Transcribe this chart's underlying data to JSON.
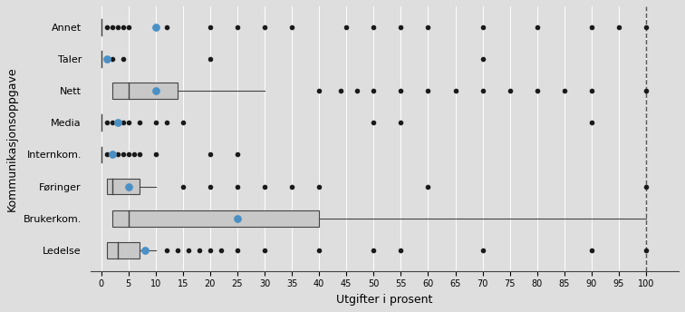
{
  "categories": [
    "Annet",
    "Taler",
    "Nett",
    "Media",
    "Internkom.",
    "Føringer",
    "Brukerkom.",
    "Ledelse"
  ],
  "xlabel": "Utgifter i prosent",
  "ylabel": "Kommunikasjonsoppgave",
  "xlim": [
    -2,
    106
  ],
  "xticks": [
    0,
    5,
    10,
    15,
    20,
    25,
    30,
    35,
    40,
    45,
    50,
    55,
    60,
    65,
    70,
    75,
    80,
    85,
    90,
    95,
    100
  ],
  "bg_color": "#dedede",
  "box_color": "#c8c8c8",
  "box_edge_color": "#444444",
  "mean_color": "#4a90c4",
  "scatter_color": "#1a1a1a",
  "dashed_line_x": 100,
  "boxes": [
    {
      "label": "Annet",
      "has_box": false,
      "q1": null,
      "q3": null,
      "median": null,
      "whisker_lo": null,
      "whisker_hi": null,
      "mean": 10
    },
    {
      "label": "Taler",
      "has_box": false,
      "q1": null,
      "q3": null,
      "median": null,
      "whisker_lo": null,
      "whisker_hi": null,
      "mean": 1
    },
    {
      "label": "Nett",
      "has_box": true,
      "q1": 2,
      "q3": 14,
      "median": 5,
      "whisker_lo": 2,
      "whisker_hi": 30,
      "mean": 10
    },
    {
      "label": "Media",
      "has_box": false,
      "q1": null,
      "q3": null,
      "median": null,
      "whisker_lo": null,
      "whisker_hi": null,
      "mean": 3
    },
    {
      "label": "Internkom.",
      "has_box": false,
      "q1": null,
      "q3": null,
      "median": null,
      "whisker_lo": null,
      "whisker_hi": null,
      "mean": 2
    },
    {
      "label": "Føringer",
      "has_box": true,
      "q1": 1,
      "q3": 7,
      "median": 2,
      "whisker_lo": 1,
      "whisker_hi": 10,
      "mean": 5
    },
    {
      "label": "Brukerkom.",
      "has_box": true,
      "q1": 2,
      "q3": 40,
      "median": 5,
      "whisker_lo": 2,
      "whisker_hi": 100,
      "mean": 25
    },
    {
      "label": "Ledelse",
      "has_box": true,
      "q1": 1,
      "q3": 7,
      "median": 3,
      "whisker_lo": 1,
      "whisker_hi": 10,
      "mean": 8
    }
  ],
  "scatter_points": {
    "Annet": [
      1,
      2,
      3,
      4,
      5,
      12,
      20,
      25,
      30,
      35,
      45,
      50,
      55,
      60,
      70,
      80,
      90,
      95,
      100
    ],
    "Taler": [
      2,
      4,
      20,
      70
    ],
    "Nett": [
      40,
      44,
      47,
      50,
      55,
      60,
      65,
      70,
      75,
      80,
      85,
      90,
      100
    ],
    "Media": [
      1,
      2,
      3,
      4,
      5,
      7,
      10,
      12,
      15,
      50,
      55,
      90
    ],
    "Internkom.": [
      1,
      2,
      3,
      4,
      5,
      6,
      7,
      10,
      20,
      25
    ],
    "Føringer": [
      15,
      20,
      25,
      30,
      35,
      40,
      60,
      100
    ],
    "Brukerkom.": [],
    "Ledelse": [
      12,
      14,
      16,
      18,
      20,
      22,
      25,
      30,
      40,
      50,
      55,
      70,
      90,
      100
    ]
  }
}
